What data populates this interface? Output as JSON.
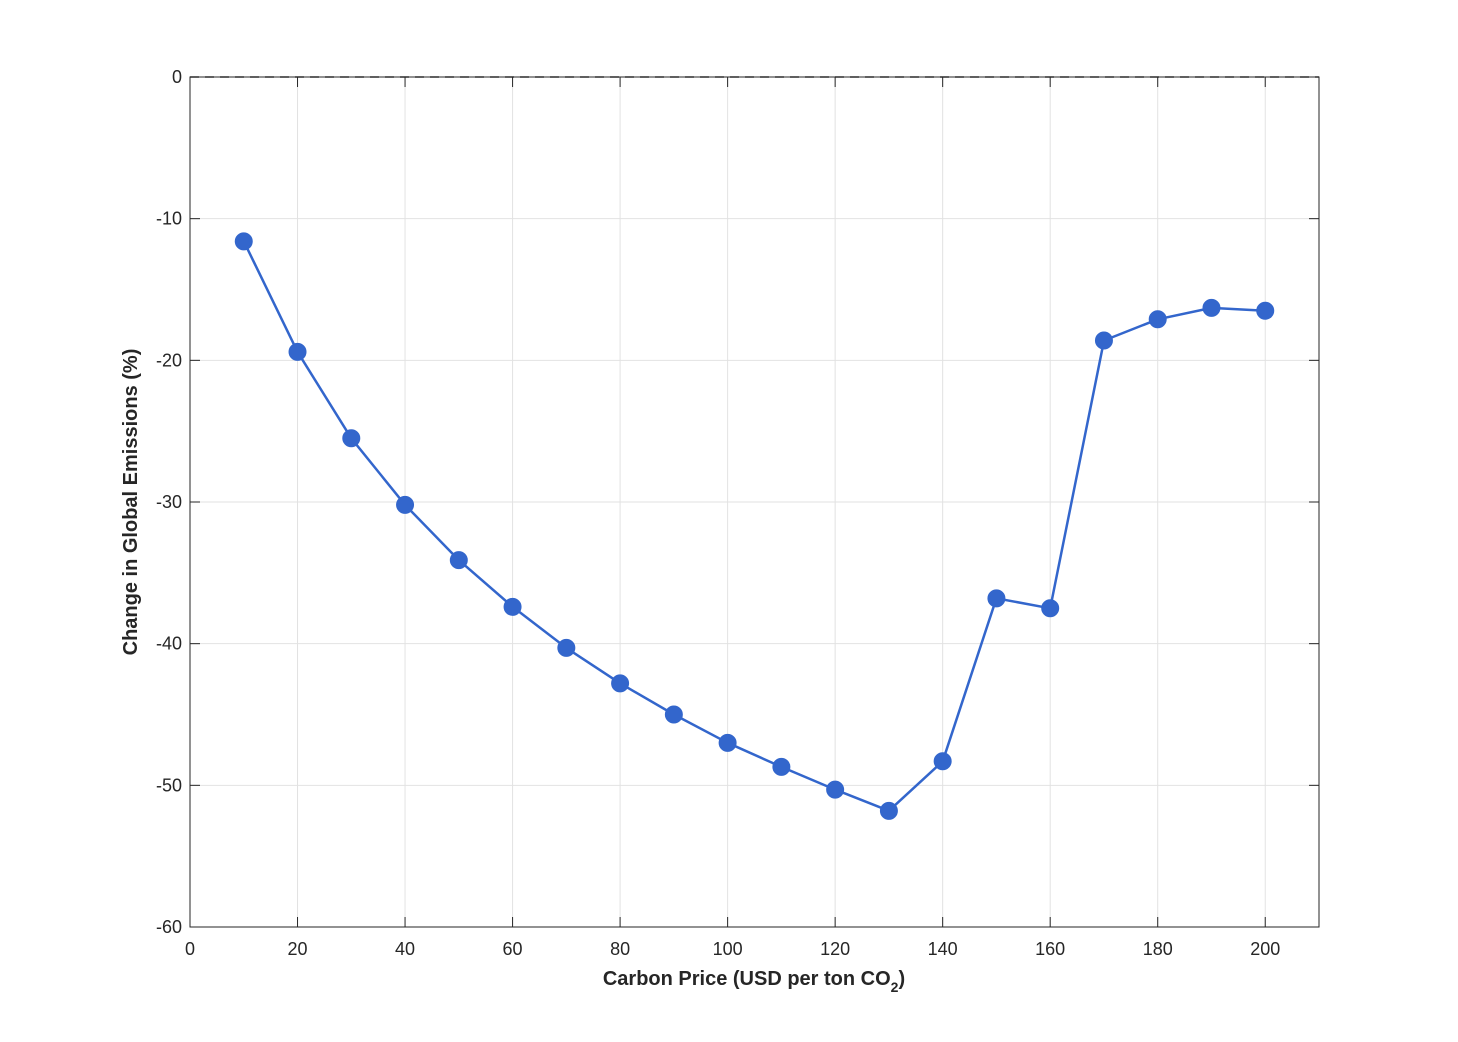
{
  "chart_data": {
    "type": "line",
    "title": "",
    "xlabel": "Carbon Price (USD per ton CO",
    "xlabel_subscript": "2",
    "xlabel_suffix": ")",
    "ylabel": "Change in Global Emissions (%)",
    "xlim": [
      0,
      210
    ],
    "ylim": [
      -60,
      0
    ],
    "xticks": [
      0,
      20,
      40,
      60,
      80,
      100,
      120,
      140,
      160,
      180,
      200
    ],
    "yticks": [
      -60,
      -50,
      -40,
      -30,
      -20,
      -10,
      0
    ],
    "grid": true,
    "legend": "none",
    "reference_line": {
      "y": 0,
      "style": "dashed"
    },
    "series": [
      {
        "color": "#3366cc",
        "marker": "circle",
        "x": [
          10,
          20,
          30,
          40,
          50,
          60,
          70,
          80,
          90,
          100,
          110,
          120,
          130,
          140,
          150,
          160,
          170,
          180,
          190,
          200
        ],
        "y": [
          -11.6,
          -19.4,
          -25.5,
          -30.2,
          -34.1,
          -37.4,
          -40.3,
          -42.8,
          -45.0,
          -47.0,
          -48.7,
          -50.3,
          -51.8,
          -48.3,
          -36.8,
          -37.5,
          -18.6,
          -17.1,
          -16.3,
          -16.5
        ]
      }
    ]
  }
}
